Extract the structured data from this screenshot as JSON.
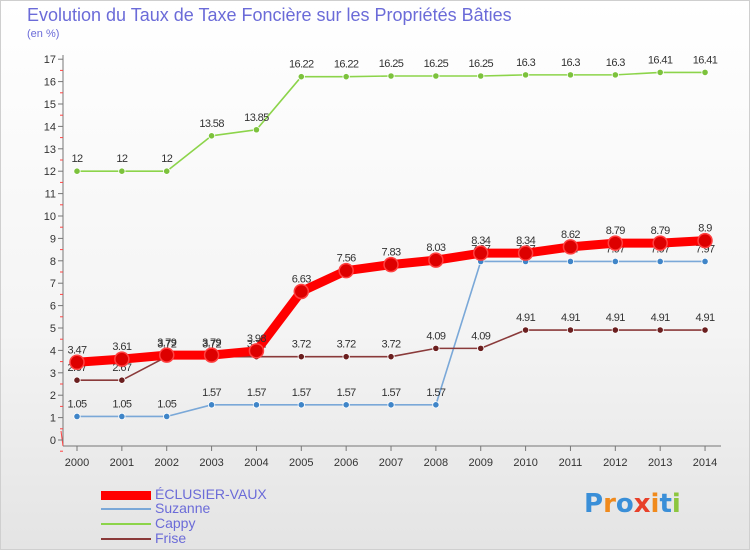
{
  "header": {
    "title": "Evolution du Taux de Taxe Foncière sur les Propriétés Bâties",
    "subtitle": "(en %)"
  },
  "logo": {
    "text": "Proxiti",
    "letter_colors": [
      "#3a8fd8",
      "#f08a1c",
      "#3a8fd8",
      "#e8402a",
      "#f08a1c",
      "#3a8fd8",
      "#8cc63f"
    ]
  },
  "chart_data": {
    "type": "line",
    "x": [
      "2000",
      "2001",
      "2002",
      "2003",
      "2004",
      "2005",
      "2006",
      "2007",
      "2008",
      "2009",
      "2010",
      "2011",
      "2012",
      "2013",
      "2014"
    ],
    "yticks": [
      "0",
      "1",
      "2",
      "3",
      "4",
      "5",
      "6",
      "7",
      "8",
      "9",
      "10",
      "11",
      "12",
      "13",
      "14",
      "15",
      "16",
      "17"
    ],
    "ylim": [
      0,
      17
    ],
    "grid": false,
    "legend_position": "bottom-left",
    "series": [
      {
        "name": "Cappy",
        "color": "#8cd44a",
        "marker_color": "#7cc23c",
        "values": [
          12,
          12,
          12,
          13.58,
          13.85,
          16.22,
          16.22,
          16.25,
          16.25,
          16.25,
          16.3,
          16.3,
          16.3,
          16.41,
          16.41
        ],
        "labels": [
          "12",
          "12",
          "12",
          "13.58",
          "13.85",
          "16.22",
          "16.22",
          "16.25",
          "16.25",
          "16.25",
          "16.3",
          "16.3",
          "16.3",
          "16.41",
          "16.41"
        ]
      },
      {
        "name": "Suzanne",
        "color": "#7aa8d8",
        "marker_color": "#3f85c8",
        "values": [
          1.05,
          1.05,
          1.05,
          1.57,
          1.57,
          1.57,
          1.57,
          1.57,
          1.57,
          7.97,
          7.97,
          7.97,
          7.97,
          7.97,
          7.97
        ],
        "labels": [
          "1.05",
          "1.05",
          "1.05",
          "1.57",
          "1.57",
          "1.57",
          "1.57",
          "1.57",
          "1.57",
          "7.97",
          "7.97",
          "7.97",
          "7.97",
          "7.97",
          "7.97"
        ]
      },
      {
        "name": "Frise",
        "color": "#8a3a3a",
        "marker_color": "#6b1f1f",
        "values": [
          2.67,
          2.67,
          3.72,
          3.72,
          3.72,
          3.72,
          3.72,
          3.72,
          4.09,
          4.09,
          4.91,
          4.91,
          4.91,
          4.91,
          4.91
        ],
        "labels": [
          "2.67",
          "2.67",
          "3.72",
          "3.72",
          "3.72",
          "3.72",
          "3.72",
          "3.72",
          "4.09",
          "4.09",
          "4.91",
          "4.91",
          "4.91",
          "4.91",
          "4.91"
        ]
      },
      {
        "name": "ÉCLUSIER-VAUX",
        "color": "#ff0000",
        "marker_color": "#dd0000",
        "values": [
          3.47,
          3.61,
          3.79,
          3.79,
          3.98,
          6.63,
          7.56,
          7.83,
          8.03,
          8.34,
          8.34,
          8.62,
          8.79,
          8.79,
          8.9
        ],
        "labels": [
          "3.47",
          "3.61",
          "3.79",
          "3.79",
          "3.98",
          "6.63",
          "7.56",
          "7.83",
          "8.03",
          "8.34",
          "8.34",
          "8.62",
          "8.79",
          "8.79",
          "8.9"
        ]
      }
    ],
    "legend_order": [
      "ÉCLUSIER-VAUX",
      "Suzanne",
      "Cappy",
      "Frise"
    ]
  }
}
